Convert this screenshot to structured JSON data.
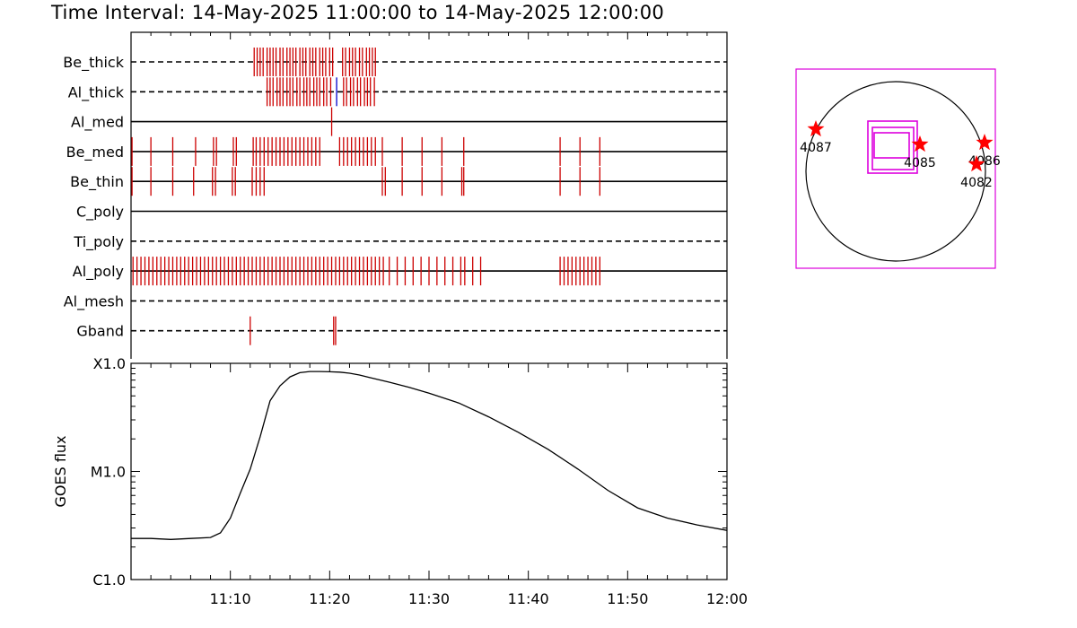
{
  "header": {
    "title": "Time Interval: 14-May-2025 11:00:00 to 14-May-2025 12:00:00"
  },
  "colors": {
    "image_tick": "#cc0000",
    "image_tick_alt": "#0000cc",
    "fov_box": "#dd00dd",
    "star": "#ff0000",
    "axis": "#000000"
  },
  "chart_data": [
    {
      "type": "event_timeline",
      "time_range": [
        "11:00",
        "12:00"
      ],
      "time_unit": "minutes after 11:00",
      "rows": [
        {
          "label": "Be_thick",
          "line_style": "dashed",
          "events": [
            12.4,
            12.7,
            13.0,
            13.3,
            13.7,
            14.0,
            14.3,
            14.6,
            15.0,
            15.3,
            15.7,
            16.0,
            16.3,
            16.6,
            17.0,
            17.3,
            17.6,
            18.0,
            18.3,
            18.6,
            19.0,
            19.3,
            19.6,
            20.0,
            20.3,
            21.3,
            21.6,
            22.0,
            22.3,
            22.6,
            23.0,
            23.3,
            23.7,
            24.0,
            24.3,
            24.6
          ]
        },
        {
          "label": "Al_thick",
          "line_style": "dashed",
          "events": [
            13.7,
            14.0,
            14.3,
            14.7,
            15.0,
            15.3,
            15.7,
            16.0,
            16.3,
            16.7,
            17.0,
            17.4,
            17.7,
            18.0,
            18.4,
            18.7,
            19.0,
            19.4,
            19.7,
            20.1,
            21.4,
            21.7,
            22.1,
            22.4,
            22.8,
            23.1,
            23.5,
            23.8,
            24.1,
            24.5
          ],
          "alt_color_events": [
            20.7
          ]
        },
        {
          "label": "Al_med",
          "line_style": "solid",
          "events": [
            20.2
          ]
        },
        {
          "label": "Be_med",
          "line_style": "solid",
          "events": [
            0.1,
            2.0,
            4.2,
            6.5,
            8.3,
            8.6,
            10.3,
            10.6,
            12.3,
            12.6,
            13.0,
            13.4,
            13.8,
            14.2,
            14.6,
            15.0,
            15.4,
            15.8,
            16.2,
            16.6,
            17.0,
            17.4,
            17.8,
            18.2,
            18.6,
            19.0,
            21.0,
            21.4,
            21.8,
            22.2,
            22.6,
            23.0,
            23.4,
            23.8,
            24.2,
            24.6,
            25.3,
            27.3,
            29.3,
            31.3,
            33.5,
            43.2,
            45.2,
            47.2
          ]
        },
        {
          "label": "Be_thin",
          "line_style": "solid",
          "events": [
            0.1,
            2.0,
            4.2,
            6.3,
            8.2,
            8.5,
            10.2,
            10.5,
            12.2,
            12.6,
            13.0,
            13.4,
            25.3,
            25.6,
            27.3,
            29.3,
            31.3,
            33.3,
            33.5,
            43.2,
            45.2,
            47.2
          ]
        },
        {
          "label": "C_poly",
          "line_style": "solid",
          "events": []
        },
        {
          "label": "Ti_poly",
          "line_style": "dashed",
          "events": []
        },
        {
          "label": "Al_poly",
          "line_style": "solid",
          "events": [
            0.2,
            0.6,
            1.0,
            1.4,
            1.8,
            2.2,
            2.6,
            3.0,
            3.4,
            3.8,
            4.2,
            4.6,
            5.0,
            5.4,
            5.8,
            6.2,
            6.6,
            7.0,
            7.4,
            7.8,
            8.2,
            8.6,
            9.0,
            9.4,
            9.8,
            10.2,
            10.6,
            11.0,
            11.4,
            11.8,
            12.2,
            12.6,
            13.0,
            13.4,
            13.8,
            14.2,
            14.6,
            15.0,
            15.4,
            15.8,
            16.2,
            16.6,
            17.0,
            17.4,
            17.8,
            18.2,
            18.6,
            19.0,
            19.4,
            19.8,
            20.2,
            20.6,
            21.0,
            21.4,
            21.8,
            22.2,
            22.6,
            23.0,
            23.4,
            23.8,
            24.2,
            24.6,
            25.0,
            25.4,
            26.0,
            26.8,
            27.6,
            28.4,
            29.2,
            30.0,
            30.8,
            31.6,
            32.4,
            33.2,
            33.6,
            34.4,
            35.2,
            43.2,
            43.6,
            44.0,
            44.4,
            44.8,
            45.2,
            45.6,
            46.0,
            46.4,
            46.8,
            47.2
          ]
        },
        {
          "label": "Al_mesh",
          "line_style": "dashed",
          "events": []
        },
        {
          "label": "Gband",
          "line_style": "dashed",
          "events": [
            12.0,
            20.4,
            20.6
          ]
        }
      ]
    },
    {
      "type": "line",
      "ylabel": "GOES flux",
      "yscale": "log",
      "ylim": [
        1e-06,
        0.0001
      ],
      "yticks": [
        {
          "value": 0.0001,
          "label": "X1.0"
        },
        {
          "value": 1e-05,
          "label": "M1.0"
        },
        {
          "value": 1e-06,
          "label": "C1.0"
        }
      ],
      "xlim": [
        "11:00",
        "12:00"
      ],
      "xticks": [
        "11:10",
        "11:20",
        "11:30",
        "11:40",
        "11:50",
        "12:00"
      ],
      "series": [
        {
          "x_minutes_after_1100": [
            0,
            2,
            4,
            6,
            8,
            9,
            10,
            11,
            12,
            13,
            14,
            15,
            16,
            17,
            18,
            19,
            20,
            21,
            22,
            23,
            24,
            26,
            28,
            30,
            33,
            36,
            39,
            42,
            45,
            48,
            51,
            54,
            57,
            60
          ],
          "y": [
            2.4e-06,
            2.4e-06,
            2.35e-06,
            2.4e-06,
            2.45e-06,
            2.7e-06,
            3.7e-06,
            6.3e-06,
            1.05e-05,
            2.1e-05,
            4.5e-05,
            6.2e-05,
            7.5e-05,
            8.2e-05,
            8.4e-05,
            8.4e-05,
            8.35e-05,
            8.3e-05,
            8.1e-05,
            7.8e-05,
            7.4e-05,
            6.7e-05,
            6e-05,
            5.3e-05,
            4.3e-05,
            3.2e-05,
            2.3e-05,
            1.6e-05,
            1.05e-05,
            6.7e-06,
            4.6e-06,
            3.7e-06,
            3.2e-06,
            2.85e-06
          ]
        }
      ]
    },
    {
      "type": "scatter",
      "subtype": "solar_disk_map",
      "xlim": [
        -1,
        1
      ],
      "ylim": [
        -1,
        1
      ],
      "disk_radius": 1,
      "fov_boxes": [
        {
          "x0": -0.31,
          "y0": -0.02,
          "x1": 0.24,
          "y1": 0.56
        },
        {
          "x0": -0.26,
          "y0": 0.02,
          "x1": 0.2,
          "y1": 0.49
        },
        {
          "x0": -0.24,
          "y0": 0.15,
          "x1": 0.15,
          "y1": 0.43
        }
      ],
      "points": [
        {
          "label": "4087",
          "x": -0.89,
          "y": 0.47
        },
        {
          "label": "4085",
          "x": 0.27,
          "y": 0.3
        },
        {
          "label": "4086",
          "x": 0.99,
          "y": 0.32
        },
        {
          "label": "4082",
          "x": 0.9,
          "y": 0.08
        }
      ]
    }
  ]
}
